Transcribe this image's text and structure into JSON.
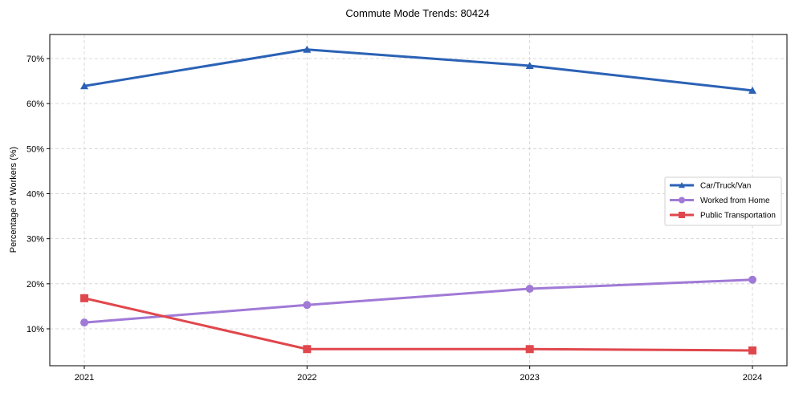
{
  "chart_data": {
    "type": "line",
    "title": "Commute Mode Trends: 80424",
    "xlabel": "",
    "ylabel": "Percentage of Workers (%)",
    "x": [
      "2021",
      "2022",
      "2023",
      "2024"
    ],
    "ylim": [
      1.8,
      75.4
    ],
    "yticks": [
      "10%",
      "20%",
      "30%",
      "40%",
      "50%",
      "60%",
      "70%"
    ],
    "grid": true,
    "legend_position": "center right",
    "series": [
      {
        "name": "Car/Truck/Van",
        "color": "#2b62b5",
        "marker": "triangle",
        "values": [
          63.9,
          72.0,
          68.4,
          62.9
        ]
      },
      {
        "name": "Worked from Home",
        "color": "#a07ad6",
        "marker": "circle",
        "values": [
          11.4,
          15.3,
          18.9,
          20.9
        ]
      },
      {
        "name": "Public Transportation",
        "color": "#e0474c",
        "marker": "square",
        "values": [
          16.8,
          5.5,
          5.5,
          5.2
        ]
      }
    ]
  }
}
